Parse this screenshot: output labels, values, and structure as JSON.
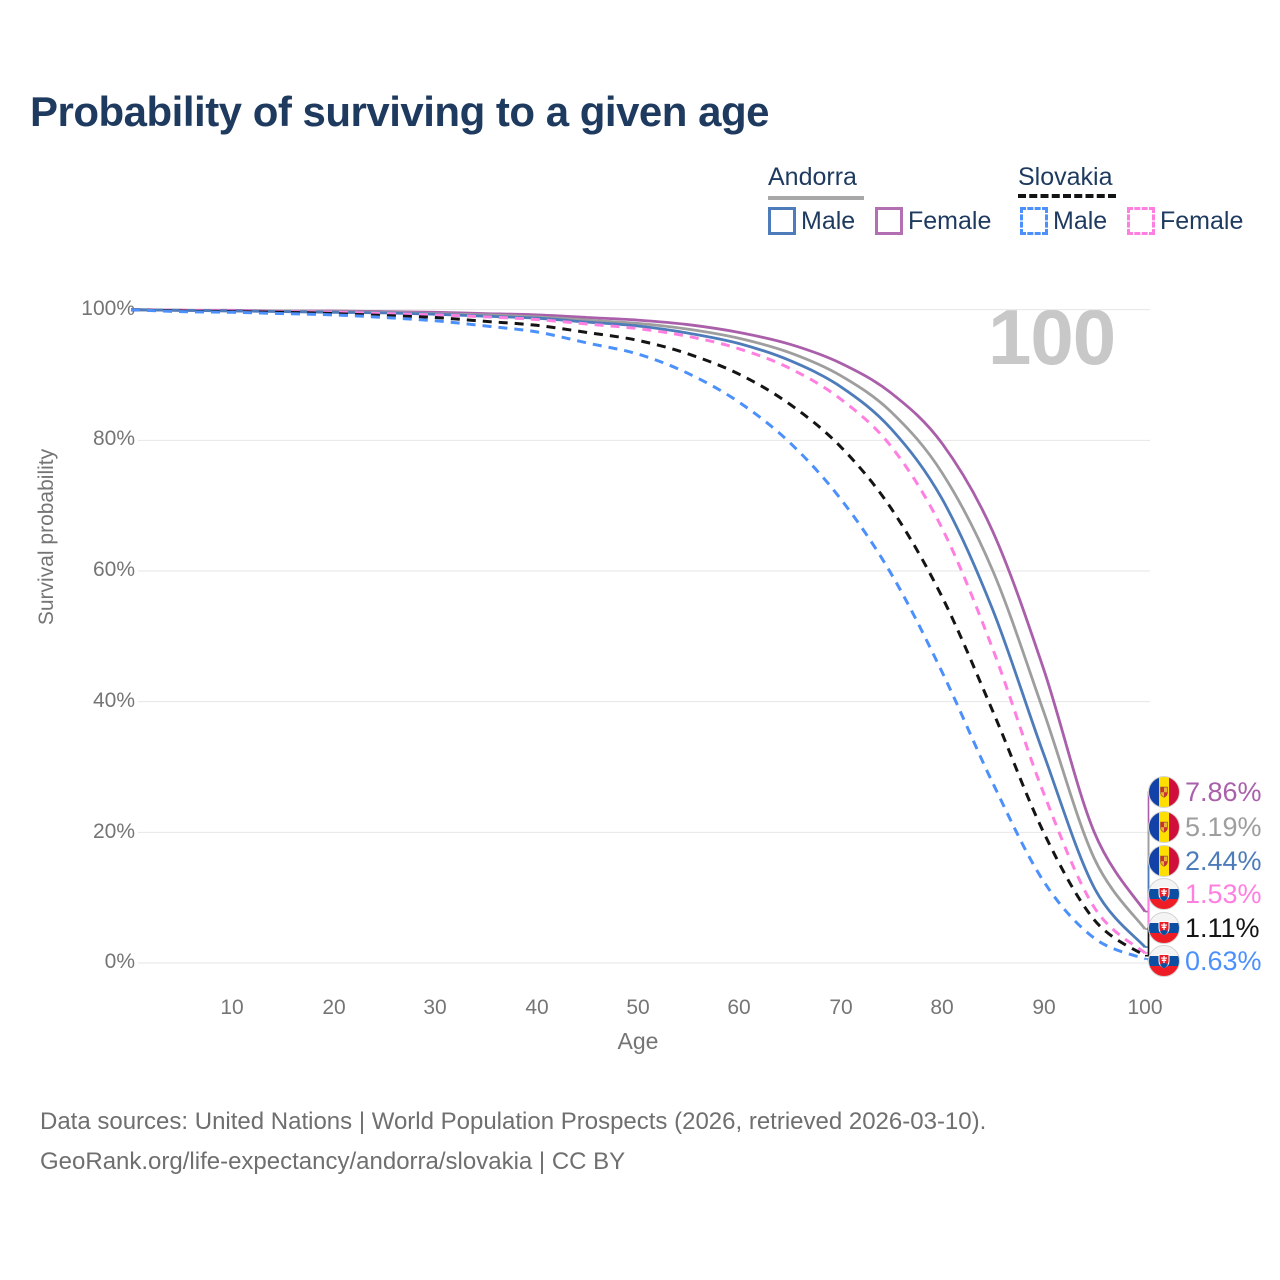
{
  "header": {
    "title": "Probability of surviving to a given age"
  },
  "legend": {
    "groups": [
      {
        "name": "Andorra",
        "line_style": "solid",
        "rule_color": "#a8a8a8",
        "items": [
          {
            "label": "Male",
            "color": "#4e7cbb"
          },
          {
            "label": "Female",
            "color": "#b26fb2"
          }
        ]
      },
      {
        "name": "Slovakia",
        "line_style": "dashed",
        "rule_color": "#141414",
        "items": [
          {
            "label": "Male",
            "color": "#4b90fb"
          },
          {
            "label": "Female",
            "color": "#ff7fe1"
          }
        ]
      }
    ]
  },
  "watermark": "100",
  "axes": {
    "y_label": "Survival probability",
    "x_label": "Age",
    "y_ticks": [
      "100%",
      "80%",
      "60%",
      "40%",
      "20%",
      "0%"
    ],
    "y_tick_values": [
      100,
      80,
      60,
      40,
      20,
      0
    ],
    "x_ticks": [
      "10",
      "20",
      "30",
      "40",
      "50",
      "60",
      "70",
      "80",
      "90",
      "100"
    ],
    "x_tick_values": [
      10,
      20,
      30,
      40,
      50,
      60,
      70,
      80,
      90,
      100
    ],
    "grid_color": "#e6e6e6",
    "tick_color": "#757575"
  },
  "chart_data": {
    "type": "line",
    "title": "Probability of surviving to a given age",
    "xlabel": "Age",
    "ylabel": "Survival probability",
    "xlim": [
      0,
      100
    ],
    "ylim": [
      0,
      100
    ],
    "grid": true,
    "legend_position": "top-right",
    "x": [
      0,
      5,
      10,
      15,
      20,
      25,
      30,
      35,
      40,
      45,
      50,
      55,
      60,
      65,
      70,
      75,
      80,
      85,
      90,
      95,
      100
    ],
    "series": [
      {
        "name": "Andorra Female",
        "country": "Andorra",
        "sex": "Female",
        "color": "#aa5faa",
        "dash": false,
        "flag": "andorra",
        "end_label": "7.86%",
        "values": [
          100,
          99.9,
          99.9,
          99.8,
          99.8,
          99.7,
          99.6,
          99.4,
          99.2,
          98.8,
          98.4,
          97.7,
          96.5,
          94.7,
          91.8,
          87.2,
          79.5,
          66.0,
          45.0,
          20.0,
          7.86
        ]
      },
      {
        "name": "Andorra",
        "country": "Andorra",
        "sex": "Both",
        "color": "#9e9e9e",
        "dash": false,
        "flag": "andorra",
        "end_label": "5.19%",
        "values": [
          100,
          99.9,
          99.8,
          99.8,
          99.7,
          99.6,
          99.4,
          99.2,
          98.9,
          98.4,
          97.9,
          97.0,
          95.6,
          93.4,
          89.9,
          84.3,
          75.0,
          60.0,
          38.5,
          16.0,
          5.19
        ]
      },
      {
        "name": "Andorra Male",
        "country": "Andorra",
        "sex": "Male",
        "color": "#4e7cbb",
        "dash": false,
        "flag": "andorra",
        "end_label": "2.44%",
        "values": [
          100,
          99.9,
          99.8,
          99.7,
          99.6,
          99.5,
          99.3,
          99.0,
          98.7,
          98.1,
          97.5,
          96.4,
          94.8,
          92.2,
          88.2,
          81.7,
          71.0,
          54.0,
          32.0,
          11.5,
          2.44
        ]
      },
      {
        "name": "Slovakia Female",
        "country": "Slovakia",
        "sex": "Female",
        "color": "#ff7fe1",
        "dash": true,
        "flag": "slovakia",
        "end_label": "1.53%",
        "values": [
          100,
          99.9,
          99.8,
          99.7,
          99.6,
          99.4,
          99.2,
          98.9,
          98.5,
          97.8,
          97.1,
          95.9,
          94.0,
          91.0,
          86.3,
          79.0,
          66.5,
          48.0,
          26.0,
          8.5,
          1.53
        ]
      },
      {
        "name": "Slovakia",
        "country": "Slovakia",
        "sex": "Both",
        "color": "#141414",
        "dash": true,
        "flag": "slovakia",
        "end_label": "1.11%",
        "values": [
          100,
          99.8,
          99.7,
          99.6,
          99.4,
          99.1,
          98.8,
          98.2,
          97.6,
          96.5,
          95.3,
          93.2,
          90.1,
          85.5,
          79.0,
          69.5,
          56.0,
          38.5,
          20.0,
          6.6,
          1.11
        ]
      },
      {
        "name": "Slovakia Male",
        "country": "Slovakia",
        "sex": "Male",
        "color": "#4b90fb",
        "dash": true,
        "flag": "slovakia",
        "end_label": "0.63%",
        "values": [
          100,
          99.7,
          99.6,
          99.4,
          99.2,
          98.8,
          98.3,
          97.5,
          96.6,
          94.9,
          93.2,
          90.2,
          85.8,
          79.6,
          71.0,
          59.5,
          44.5,
          27.5,
          12.5,
          3.8,
          0.63
        ]
      }
    ]
  },
  "flags": {
    "andorra": {
      "blue": "#1241a8",
      "yellow": "#fedf00",
      "red": "#d0103a",
      "emblem": "#e9b23c"
    },
    "slovakia": {
      "white": "#f4f4f4",
      "blue": "#0b4ea2",
      "red": "#ee1c25"
    }
  },
  "footer": {
    "line1": "Data sources: United Nations | World Population Prospects (2026, retrieved 2026-03-10).",
    "line2": "GeoRank.org/life-expectancy/andorra/slovakia | CC BY"
  }
}
